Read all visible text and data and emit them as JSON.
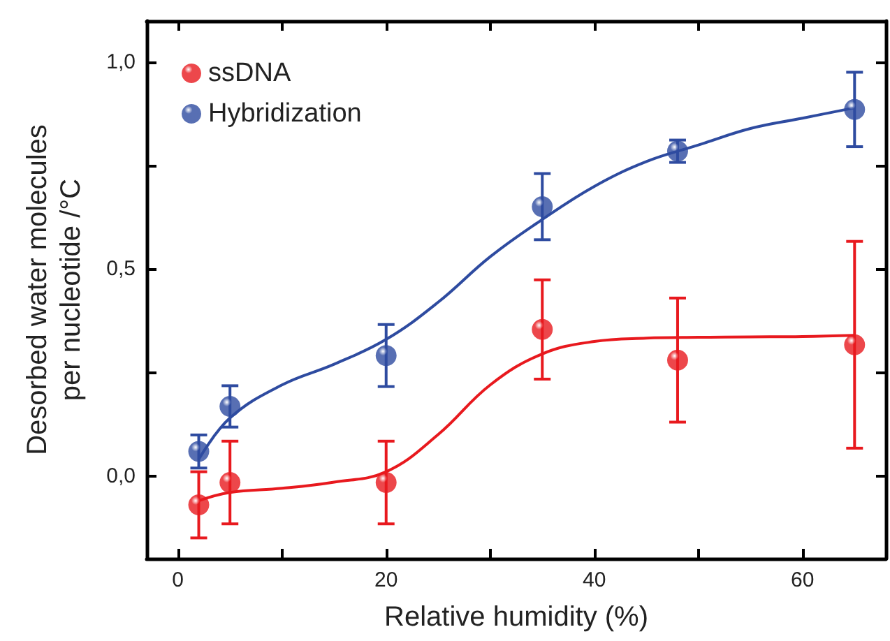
{
  "chart_data": {
    "type": "scatter",
    "xlabel": "Relative humidity (%)",
    "ylabel": "Desorbed water molecules\nper nucleotide /°C",
    "xlim": [
      -3,
      68
    ],
    "ylim": [
      -0.2,
      1.1
    ],
    "xticks": [
      0,
      {
        "value": 10,
        "label": null
      },
      20,
      {
        "value": 30,
        "label": null
      },
      40,
      {
        "value": 50,
        "label": null
      },
      60
    ],
    "yticks": [
      {
        "value": 0,
        "label": "0,0"
      },
      {
        "value": 0.25,
        "label": null
      },
      {
        "value": 0.5,
        "label": "0,5"
      },
      {
        "value": 0.75,
        "label": null
      },
      {
        "value": 1,
        "label": "1,0"
      }
    ],
    "legend": "top left",
    "grid": false,
    "series": [
      {
        "name": "ssDNA",
        "marker": "circle",
        "color": "#e8191e",
        "x": [
          2,
          5,
          20,
          35,
          48,
          65
        ],
        "values": [
          -0.07,
          -0.016,
          -0.016,
          0.354,
          0.28,
          0.317
        ],
        "errors": [
          0.08,
          0.1,
          0.1,
          0.12,
          0.15,
          0.25
        ]
      },
      {
        "name": "Hybridization",
        "marker": "circle",
        "color": "#2e4ba0",
        "x": [
          2,
          5,
          20,
          35,
          48,
          65
        ],
        "values": [
          0.059,
          0.168,
          0.291,
          0.651,
          0.785,
          0.886
        ],
        "errors": [
          0.04,
          0.05,
          0.075,
          0.08,
          0.027,
          0.09
        ]
      },
      {
        "type": "line",
        "color": "#e8191e",
        "x": [
          2,
          5,
          10,
          15,
          20,
          25,
          30,
          35,
          40,
          45,
          50,
          55,
          60,
          65
        ],
        "values": [
          -0.06,
          -0.04,
          -0.03,
          -0.015,
          0.01,
          0.1,
          0.22,
          0.295,
          0.325,
          0.333,
          0.335,
          0.336,
          0.337,
          0.34
        ]
      },
      {
        "type": "line",
        "color": "#2e4ba0",
        "x": [
          2,
          5,
          10,
          15,
          20,
          25,
          30,
          35,
          40,
          45,
          50,
          55,
          60,
          65
        ],
        "values": [
          0.04,
          0.14,
          0.22,
          0.27,
          0.33,
          0.42,
          0.53,
          0.62,
          0.7,
          0.76,
          0.8,
          0.84,
          0.865,
          0.89
        ]
      }
    ]
  }
}
